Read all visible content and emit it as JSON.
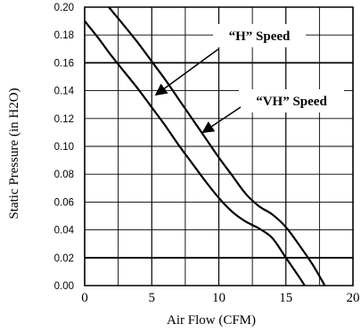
{
  "chart_data": {
    "type": "line",
    "xlabel": "Air Flow (CFM)",
    "ylabel": "Static Pressure (in H2O)",
    "xlim": [
      0,
      20
    ],
    "ylim": [
      0,
      0.2
    ],
    "x_ticks": [
      "0",
      "5",
      "10",
      "15",
      "20"
    ],
    "y_ticks": [
      "0.00",
      "0.02",
      "0.04",
      "0.06",
      "0.08",
      "0.10",
      "0.12",
      "0.14",
      "0.16",
      "0.18",
      "0.20"
    ],
    "grid": true,
    "series": [
      {
        "name": "“H” Speed",
        "x": [
          0,
          1,
          2,
          3,
          4,
          5,
          6,
          7,
          8,
          9,
          10,
          11,
          12,
          13,
          14,
          15,
          16,
          16.4
        ],
        "y": [
          0.19,
          0.178,
          0.165,
          0.153,
          0.141,
          0.128,
          0.115,
          0.101,
          0.088,
          0.075,
          0.063,
          0.053,
          0.046,
          0.041,
          0.034,
          0.02,
          0.006,
          0.0
        ]
      },
      {
        "name": "“VH” Speed",
        "x": [
          1.8,
          3,
          4,
          5,
          6,
          7,
          8,
          9,
          10,
          11,
          12,
          13,
          14,
          15,
          16,
          17,
          17.9
        ],
        "y": [
          0.2,
          0.186,
          0.174,
          0.161,
          0.148,
          0.134,
          0.12,
          0.106,
          0.092,
          0.079,
          0.066,
          0.057,
          0.051,
          0.042,
          0.029,
          0.015,
          0.0
        ]
      }
    ],
    "annotations": [
      {
        "text": "“H” Speed",
        "points_to_series": 0,
        "arrow_tip": [
          5.3,
          0.137
        ]
      },
      {
        "text": "“VH” Speed",
        "points_to_series": 1,
        "arrow_tip": [
          8.8,
          0.11
        ]
      }
    ]
  }
}
